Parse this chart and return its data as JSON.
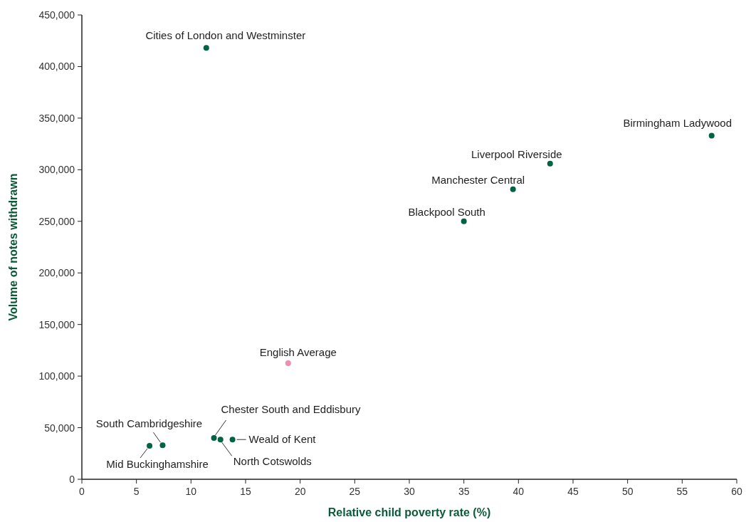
{
  "chart_data": {
    "type": "scatter",
    "xlabel": "Relative child poverty rate (%)",
    "ylabel": "Volume of notes withdrawn",
    "x": [
      11.4,
      57.7,
      42.9,
      39.5,
      35.0,
      18.9,
      12.1,
      12.7,
      13.8,
      7.4,
      6.2
    ],
    "values": [
      418000,
      333000,
      306000,
      281000,
      250000,
      112500,
      40000,
      38500,
      38500,
      33000,
      32500
    ],
    "colors": [
      "#006341",
      "#006341",
      "#006341",
      "#006341",
      "#006341",
      "#f08cb0",
      "#006341",
      "#006341",
      "#006341",
      "#006341",
      "#006341"
    ],
    "marker": "circle",
    "grid": false,
    "xlim": [
      0,
      60
    ],
    "xticks": [
      0,
      5,
      10,
      15,
      20,
      25,
      30,
      35,
      40,
      45,
      50,
      55,
      60
    ],
    "ylim": [
      0,
      450000
    ],
    "yticks": [
      0,
      {
        "value": 50000,
        "label": "50,000"
      },
      {
        "value": 100000,
        "label": "100,000"
      },
      {
        "value": 150000,
        "label": "150,000"
      },
      {
        "value": 200000,
        "label": "200,000"
      },
      {
        "value": 250000,
        "label": "250,000"
      },
      {
        "value": 300000,
        "label": "300,000"
      },
      {
        "value": 350000,
        "label": "350,000"
      },
      {
        "value": 400000,
        "label": "400,000"
      },
      {
        "value": 450000,
        "label": "450,000"
      }
    ],
    "annotations": [
      {
        "text": "Cities of London and Westminster",
        "x": 11.4,
        "y": 418000
      },
      {
        "text": "Birmingham Ladywood",
        "x": 57.7,
        "y": 333000
      },
      {
        "text": "Liverpool Riverside",
        "x": 42.9,
        "y": 306000
      },
      {
        "text": "Manchester Central",
        "x": 39.5,
        "y": 281000
      },
      {
        "text": "Blackpool South",
        "x": 35.0,
        "y": 250000
      },
      {
        "text": "English Average",
        "x": 18.9,
        "y": 112500
      },
      {
        "text": "Chester South and Eddisbury",
        "x": 12.1,
        "y": 40000
      },
      {
        "text": "North Cotswolds",
        "x": 12.7,
        "y": 38500
      },
      {
        "text": "Weald of Kent",
        "x": 13.8,
        "y": 38500
      },
      {
        "text": "South Cambridgeshire",
        "x": 7.4,
        "y": 33000
      },
      {
        "text": "Mid Buckinghamshire",
        "x": 6.2,
        "y": 32500
      }
    ]
  }
}
